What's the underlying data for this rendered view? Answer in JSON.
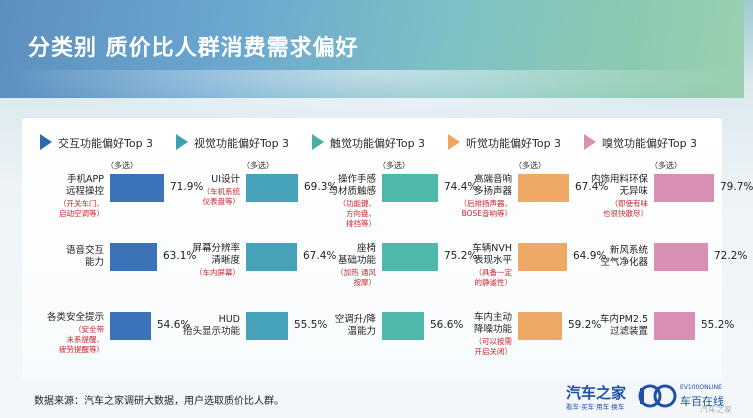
{
  "title": "分类别 质价比人群消费需求偏好",
  "source": "数据来源：汽车之家调研大数据，用户选取质价比人群。",
  "logo_autohome": {
    "name": "汽车之家",
    "tagline": "看车·买车·用车·换车"
  },
  "logo_che100": {
    "en": "EV100ONLINE",
    "cn": "车百在线"
  },
  "watermark": "汽车之家",
  "chart_data": [
    {
      "type": "bar",
      "title": "交互功能偏好Top 3",
      "note": "（多选）",
      "color": "#3b72b8",
      "icon_color": "#2f6aa8",
      "categories": [
        "手机APP远程操控",
        "语音交互能力",
        "各类安全提示"
      ],
      "category_lines": [
        [
          "手机APP",
          "远程操控"
        ],
        [
          "语音交互",
          "能力"
        ],
        [
          "各类安全提示"
        ]
      ],
      "category_notes": [
        [
          "（开关车门、",
          "启动空调等）"
        ],
        [],
        [
          "（安全带",
          "未系提醒、",
          "疲劳提醒等）"
        ]
      ],
      "values": [
        71.9,
        63.1,
        54.6
      ],
      "labels": [
        "71.9%",
        "63.1%",
        "54.6%"
      ]
    },
    {
      "type": "bar",
      "title": "视觉功能偏好Top 3",
      "note": "（多选）",
      "color": "#45a2b8",
      "icon_color": "#3e9eb4",
      "categories": [
        "UI设计",
        "屏幕分辨率清晰度",
        "HUD抬头显示功能"
      ],
      "category_lines": [
        [
          "UI设计"
        ],
        [
          "屏幕分辨率",
          "清晰度"
        ],
        [
          "HUD",
          "抬头显示功能"
        ]
      ],
      "category_notes": [
        [
          "（车机系统",
          "仪表盘等）"
        ],
        [
          "（车内屏幕）"
        ],
        []
      ],
      "values": [
        69.3,
        67.4,
        55.5
      ],
      "labels": [
        "69.3%",
        "67.4%",
        "55.5%"
      ]
    },
    {
      "type": "bar",
      "title": "触觉功能偏好Top 3",
      "note": "（多选）",
      "color": "#4fb8aa",
      "icon_color": "#47b0a2",
      "categories": [
        "操作手感与材质触感",
        "座椅基础功能",
        "空调升/降温能力"
      ],
      "category_lines": [
        [
          "操作手感",
          "与材质触感"
        ],
        [
          "座椅",
          "基础功能"
        ],
        [
          "空调升/降",
          "温能力"
        ]
      ],
      "category_notes": [
        [
          "（功能键、",
          "方向盘、",
          "排挡等）"
        ],
        [
          "（加热 通风",
          "按摩）"
        ],
        []
      ],
      "values": [
        74.4,
        75.2,
        56.6
      ],
      "labels": [
        "74.4%",
        "75.2%",
        "56.6%"
      ]
    },
    {
      "type": "bar",
      "title": "听觉功能偏好Top 3",
      "note": "（多选）",
      "color": "#f0a866",
      "icon_color": "#f0a45e",
      "categories": [
        "高端音响多扬声器",
        "车辆NVH表现水平",
        "车内主动降噪功能"
      ],
      "category_lines": [
        [
          "高端音响",
          "多扬声器"
        ],
        [
          "车辆NVH",
          "表现水平"
        ],
        [
          "车内主动",
          "降噪功能"
        ]
      ],
      "category_notes": [
        [
          "（后排扬声器、",
          "BOSE音响等）"
        ],
        [
          "（具备一定",
          "的静谧性）"
        ],
        [
          "（可以按需",
          "开启关闭）"
        ]
      ],
      "values": [
        67.4,
        64.9,
        59.2
      ],
      "labels": [
        "67.4%",
        "64.9%",
        "59.2%"
      ]
    },
    {
      "type": "bar",
      "title": "嗅觉功能偏好Top 3",
      "note": "（多选）",
      "color": "#d98fb3",
      "icon_color": "#d890b2",
      "categories": [
        "内饰用料环保无异味",
        "新风系统空气净化器",
        "车内PM2.5过滤装置"
      ],
      "category_lines": [
        [
          "内饰用料环保",
          "无异味"
        ],
        [
          "新风系统",
          "空气净化器"
        ],
        [
          "车内PM2.5",
          "过滤装置"
        ]
      ],
      "category_notes": [
        [
          "（即使有味",
          "也很快散尽）"
        ],
        [],
        []
      ],
      "values": [
        79.7,
        72.2,
        55.2
      ],
      "labels": [
        "79.7%",
        "72.2%",
        "55.2%"
      ]
    }
  ]
}
